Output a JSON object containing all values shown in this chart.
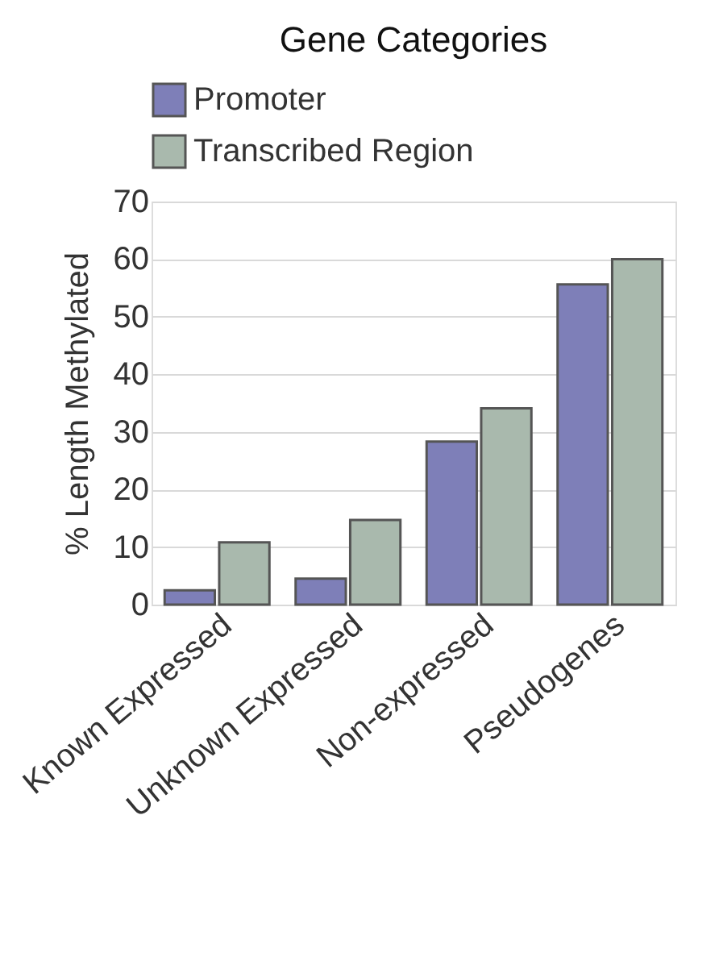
{
  "chart_data": {
    "type": "bar",
    "title": "Gene Categories",
    "ylabel": "% Length Methylated",
    "categories": [
      "Known Expressed",
      "Unknown Expressed",
      "Non-expressed",
      "Pseudogenes"
    ],
    "series": [
      {
        "name": "Promoter",
        "color": "#7e7fb8",
        "values": [
          2.5,
          4.5,
          28.3,
          55.6
        ]
      },
      {
        "name": "Transcribed Region",
        "color": "#a9b9ad",
        "values": [
          10.8,
          14.7,
          34.1,
          60.0
        ]
      }
    ],
    "ylim": [
      0,
      70
    ],
    "yticks": [
      0,
      10,
      20,
      30,
      40,
      50,
      60,
      70
    ],
    "grid": "y",
    "legend": "top left"
  }
}
